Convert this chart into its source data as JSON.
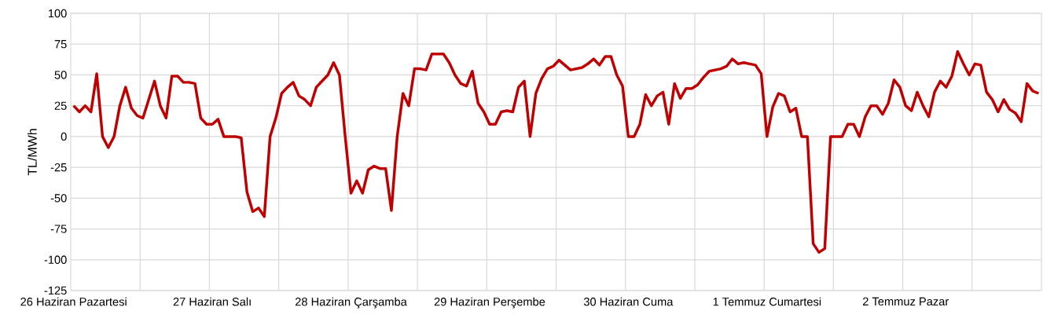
{
  "chart_data": {
    "type": "line",
    "ylabel": "TL/MWh",
    "categories": [
      "26 Haziran Pazartesi",
      null,
      null,
      null,
      null,
      null,
      null,
      null,
      null,
      null,
      null,
      null,
      null,
      null,
      null,
      null,
      null,
      null,
      null,
      null,
      null,
      null,
      null,
      null,
      "27 Haziran Salı",
      null,
      null,
      null,
      null,
      null,
      null,
      null,
      null,
      null,
      null,
      null,
      null,
      null,
      null,
      null,
      null,
      null,
      null,
      null,
      null,
      null,
      null,
      null,
      "28 Haziran Çarşamba",
      null,
      null,
      null,
      null,
      null,
      null,
      null,
      null,
      null,
      null,
      null,
      null,
      null,
      null,
      null,
      null,
      null,
      null,
      null,
      null,
      null,
      null,
      null,
      "29 Haziran Perşembe",
      null,
      null,
      null,
      null,
      null,
      null,
      null,
      null,
      null,
      null,
      null,
      null,
      null,
      null,
      null,
      null,
      null,
      null,
      null,
      null,
      null,
      null,
      null,
      "30 Haziran Cuma",
      null,
      null,
      null,
      null,
      null,
      null,
      null,
      null,
      null,
      null,
      null,
      null,
      null,
      null,
      null,
      null,
      null,
      null,
      null,
      null,
      null,
      null,
      null,
      "1 Temmuz Cumartesi",
      null,
      null,
      null,
      null,
      null,
      null,
      null,
      null,
      null,
      null,
      null,
      null,
      null,
      null,
      null,
      null,
      null,
      null,
      null,
      null,
      null,
      null,
      null,
      "2 Temmuz Pazar",
      null,
      null,
      null,
      null,
      null,
      null,
      null,
      null,
      null,
      null,
      null,
      null,
      null,
      null,
      null,
      null,
      null,
      null,
      null,
      null,
      null,
      null,
      null
    ],
    "values": [
      25,
      20,
      25,
      20,
      51,
      0,
      -9,
      0,
      25,
      40,
      23,
      17,
      15,
      30,
      45,
      25,
      15,
      49,
      49,
      44,
      44,
      43,
      15,
      10,
      10,
      14,
      0,
      0,
      0,
      -1,
      -45,
      -61,
      -58,
      -65,
      0,
      15,
      35,
      40,
      44,
      33,
      30,
      25,
      40,
      45,
      50,
      60,
      50,
      0,
      -46,
      -36,
      -46,
      -27,
      -24,
      -26,
      -26,
      -60,
      0,
      35,
      25,
      55,
      55,
      54,
      67,
      67,
      67,
      60,
      50,
      43,
      41,
      53,
      27,
      20,
      10,
      10,
      20,
      21,
      20,
      40,
      45,
      0,
      35,
      47,
      55,
      57,
      62,
      58,
      54,
      55,
      56,
      59,
      63,
      58,
      65,
      65,
      50,
      41,
      0,
      0,
      10,
      34,
      25,
      33,
      36,
      10,
      43,
      31,
      39,
      39,
      42,
      48,
      53,
      54,
      55,
      57,
      63,
      59,
      60,
      59,
      58,
      51,
      0,
      24,
      35,
      33,
      20,
      23,
      0,
      0,
      -87,
      -94,
      -91,
      0,
      0,
      0,
      10,
      10,
      0,
      16,
      25,
      25,
      18,
      27,
      46,
      40,
      25,
      21,
      36,
      25,
      16,
      36,
      45,
      40,
      49,
      69,
      59,
      50,
      59,
      58,
      36,
      30,
      20,
      30,
      22,
      19,
      12,
      43,
      37,
      35
    ],
    "color": "#c00000",
    "ylim": [
      -125,
      100
    ],
    "yticks": [
      -125,
      -100,
      -75,
      -50,
      -25,
      0,
      25,
      50,
      75,
      100
    ],
    "grid": true
  }
}
